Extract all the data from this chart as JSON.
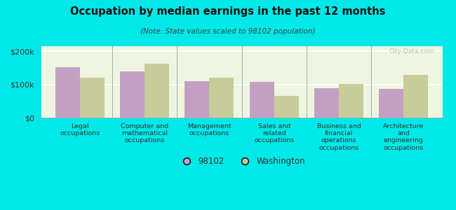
{
  "title": "Occupation by median earnings in the past 12 months",
  "subtitle": "(Note: State values scaled to 98102 population)",
  "categories": [
    "Legal\noccupations",
    "Computer and\nmathematical\noccupations",
    "Management\noccupations",
    "Sales and\nrelated\noccupations",
    "Business and\nfinancial\noperations\noccupations",
    "Architecture\nand\nengineering\noccupations"
  ],
  "values_98102": [
    152000,
    140000,
    110000,
    107000,
    88000,
    87000
  ],
  "values_washington": [
    120000,
    163000,
    120000,
    65000,
    102000,
    128000
  ],
  "color_98102": "#c49fc4",
  "color_washington": "#c8cc99",
  "background_color": "#00e8e8",
  "plot_bg": "#eef5e0",
  "ylim": [
    0,
    215000
  ],
  "yticks": [
    0,
    100000,
    200000
  ],
  "ytick_labels": [
    "$0",
    "$100k",
    "$200k"
  ],
  "legend_98102": "98102",
  "legend_washington": "Washington",
  "bar_width": 0.38,
  "watermark": "City-Data.com"
}
